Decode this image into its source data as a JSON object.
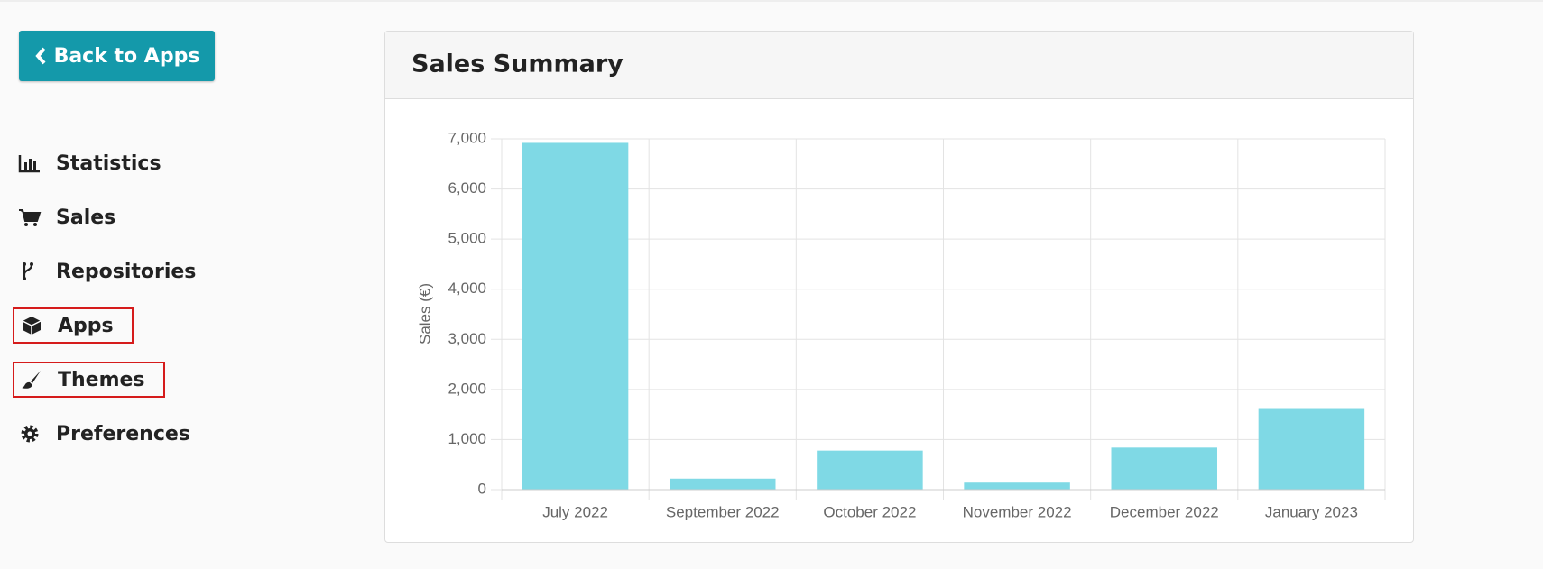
{
  "sidebar": {
    "back_button": "Back to Apps",
    "nav": [
      "Statistics",
      "Sales",
      "Repositories",
      "Apps",
      "Themes",
      "Preferences"
    ],
    "highlighted": [
      3,
      4
    ]
  },
  "chart_data": {
    "type": "bar",
    "title": "Sales Summary",
    "y_label": "Sales (€)",
    "categories": [
      "July 2022",
      "September 2022",
      "October 2022",
      "November 2022",
      "December 2022",
      "January 2023"
    ],
    "values": [
      6920,
      220,
      780,
      140,
      840,
      1610
    ],
    "color": "#7fd9e5",
    "ylim": [
      0,
      7000
    ],
    "yticks": [
      0,
      {
        "value": 1000,
        "label": "1,000"
      },
      {
        "value": 2000,
        "label": "2,000"
      },
      {
        "value": 3000,
        "label": "3,000"
      },
      {
        "value": 4000,
        "label": "4,000"
      },
      {
        "value": 5000,
        "label": "5,000"
      },
      {
        "value": 6000,
        "label": "6,000"
      },
      {
        "value": 7000,
        "label": "7,000"
      }
    ],
    "grid": true
  }
}
